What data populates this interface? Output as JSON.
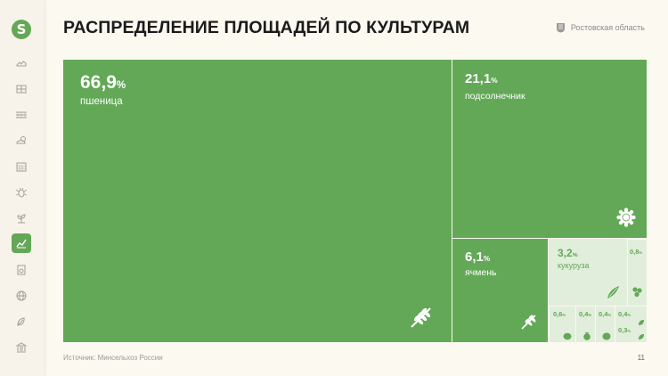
{
  "page": {
    "title": "РАСПРЕДЕЛЕНИЕ ПЛОЩАДЕЙ ПО КУЛЬТУРАМ",
    "region": "Ростовская область",
    "source": "Источник: Минсельхоз России",
    "page_number": "11",
    "logo_letter": "S"
  },
  "sidebar": {
    "items": [
      {
        "icon": "map-icon"
      },
      {
        "icon": "dashboard-icon"
      },
      {
        "icon": "fields-icon"
      },
      {
        "icon": "weather-icon"
      },
      {
        "icon": "calendar-icon"
      },
      {
        "icon": "pest-icon"
      },
      {
        "icon": "plant-icon"
      },
      {
        "icon": "crops-chart-icon",
        "active": true
      },
      {
        "icon": "report-icon"
      },
      {
        "icon": "globe-icon"
      },
      {
        "icon": "harvest-icon"
      },
      {
        "icon": "institution-icon"
      }
    ]
  },
  "colors": {
    "accent": "#62a856",
    "light": "#e1eedb",
    "background": "#fcf9f1"
  },
  "chart_data": {
    "type": "treemap",
    "unit": "%",
    "items": [
      {
        "name": "пшеница",
        "value": 66.9,
        "label": "66,9"
      },
      {
        "name": "подсолнечник",
        "value": 21.1,
        "label": "21,1"
      },
      {
        "name": "ячмень",
        "value": 6.1,
        "label": "6,1"
      },
      {
        "name": "кукуруза",
        "value": 3.2,
        "label": "3,2"
      },
      {
        "name": "",
        "value": 0.8,
        "label": "0,8"
      },
      {
        "name": "",
        "value": 0.6,
        "label": "0,6"
      },
      {
        "name": "",
        "value": 0.4,
        "label": "0,4"
      },
      {
        "name": "",
        "value": 0.4,
        "label": "0,4"
      },
      {
        "name": "",
        "value": 0.4,
        "label": "0,4"
      },
      {
        "name": "",
        "value": 0.3,
        "label": "0,3"
      }
    ]
  }
}
